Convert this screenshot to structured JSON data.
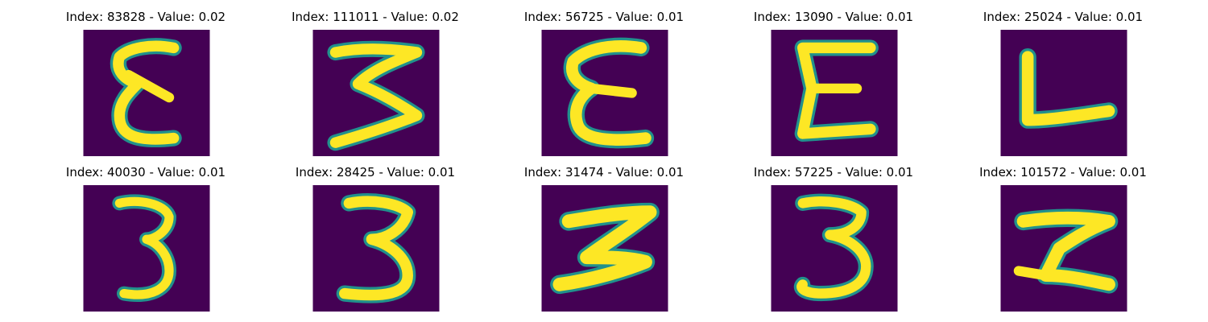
{
  "figure": {
    "background_color": "#440154",
    "stroke_color": "#fde725",
    "edge_color": "#21918c",
    "panels": [
      {
        "title": "Index: 83828 - Value: 0.02",
        "glyph": "E (curved)"
      },
      {
        "title": "Index: 111011 - Value: 0.02",
        "glyph": "3 (rotated W)"
      },
      {
        "title": "Index: 56725 - Value: 0.01",
        "glyph": "E (curved)"
      },
      {
        "title": "Index: 13090 - Value: 0.01",
        "glyph": "E"
      },
      {
        "title": "Index: 25024 - Value: 0.01",
        "glyph": "L"
      },
      {
        "title": "Index: 40030 - Value: 0.01",
        "glyph": "3"
      },
      {
        "title": "Index: 28425 - Value: 0.01",
        "glyph": "3"
      },
      {
        "title": "Index: 31474 - Value: 0.01",
        "glyph": "Z (sideways)"
      },
      {
        "title": "Index: 57225 - Value: 0.01",
        "glyph": "3"
      },
      {
        "title": "Index: 101572 - Value: 0.01",
        "glyph": "Z-shape"
      }
    ]
  }
}
